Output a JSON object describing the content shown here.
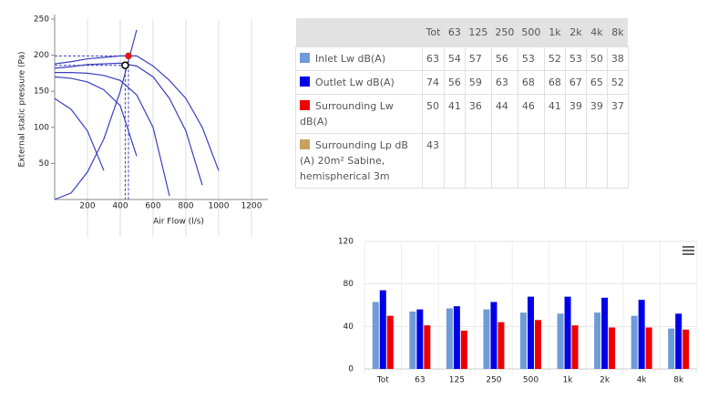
{
  "chart_data": [
    {
      "type": "line",
      "x_label": "Air Flow (l/s)",
      "y_label": "External static pressure (Pa)",
      "x": [
        0,
        100,
        200,
        300,
        400,
        500,
        600,
        700,
        800,
        900,
        1000,
        1100
      ],
      "series": [
        {
          "color": "#3a3fc0",
          "values": [
            188,
            191,
            195,
            197,
            199,
            199,
            185,
            165,
            140,
            100,
            40,
            null
          ]
        },
        {
          "color": "#3a3fc0",
          "values": [
            182,
            184,
            187,
            188,
            189,
            185,
            170,
            140,
            95,
            20,
            null,
            null
          ]
        },
        {
          "color": "#3a3fc0",
          "values": [
            176,
            176,
            175,
            172,
            165,
            145,
            100,
            5,
            null,
            null,
            null,
            null
          ]
        },
        {
          "color": "#3a3fc0",
          "values": [
            170,
            168,
            163,
            152,
            130,
            60,
            null,
            null,
            null,
            null,
            null,
            null
          ]
        },
        {
          "color": "#3a3fc0",
          "values": [
            140,
            125,
            95,
            40,
            null,
            null,
            null,
            null,
            null,
            null,
            null,
            null
          ]
        },
        {
          "color": "#3a3fc0",
          "values": [
            0,
            9,
            38,
            84,
            150,
            235,
            null,
            null,
            null,
            null,
            null,
            null
          ]
        }
      ],
      "operating_points": {
        "x": [
          450,
          430
        ],
        "values": [
          199,
          186
        ],
        "colors": [
          "#e01818",
          "#000000"
        ]
      },
      "xlim": [
        0,
        1300
      ],
      "xticks": [
        200,
        400,
        600,
        800,
        1000,
        1200
      ],
      "ylim": [
        0,
        250
      ],
      "yticks": [
        50,
        100,
        150,
        200,
        250
      ],
      "grid": "x"
    },
    {
      "type": "bar",
      "categories": [
        "Tot",
        "63",
        "125",
        "250",
        "500",
        "1k",
        "2k",
        "4k",
        "8k"
      ],
      "series": [
        {
          "color": "#6f9bd8",
          "values": [
            63,
            54,
            57,
            56,
            53,
            52,
            53,
            50,
            38
          ]
        },
        {
          "color": "#0000e6",
          "values": [
            74,
            56,
            59,
            63,
            68,
            68,
            67,
            65,
            52
          ]
        },
        {
          "color": "#ee0000",
          "values": [
            50,
            41,
            36,
            44,
            46,
            41,
            39,
            39,
            37
          ]
        }
      ],
      "ylim": [
        0,
        120
      ],
      "yticks": [
        0,
        40,
        80,
        120
      ],
      "grid": true
    }
  ],
  "table": {
    "header": [
      "Tot",
      "63",
      "125",
      "250",
      "500",
      "1k",
      "2k",
      "4k",
      "8k"
    ],
    "rows": [
      {
        "color": "#6f9bd8",
        "label": "Inlet Lw dB(A)",
        "values": [
          63,
          54,
          57,
          56,
          53,
          52,
          53,
          50,
          38
        ]
      },
      {
        "color": "#0000e6",
        "label": "Outlet Lw dB(A)",
        "values": [
          74,
          56,
          59,
          63,
          68,
          68,
          67,
          65,
          52
        ]
      },
      {
        "color": "#ee0000",
        "label": "Surrounding Lw dB(A)",
        "values": [
          50,
          41,
          36,
          44,
          46,
          41,
          39,
          39,
          37
        ]
      },
      {
        "color": "#c8a060",
        "label": "Surrounding Lp dB (A) 20m² Sabine, hemispherical 3m",
        "values": [
          43
        ]
      }
    ]
  }
}
